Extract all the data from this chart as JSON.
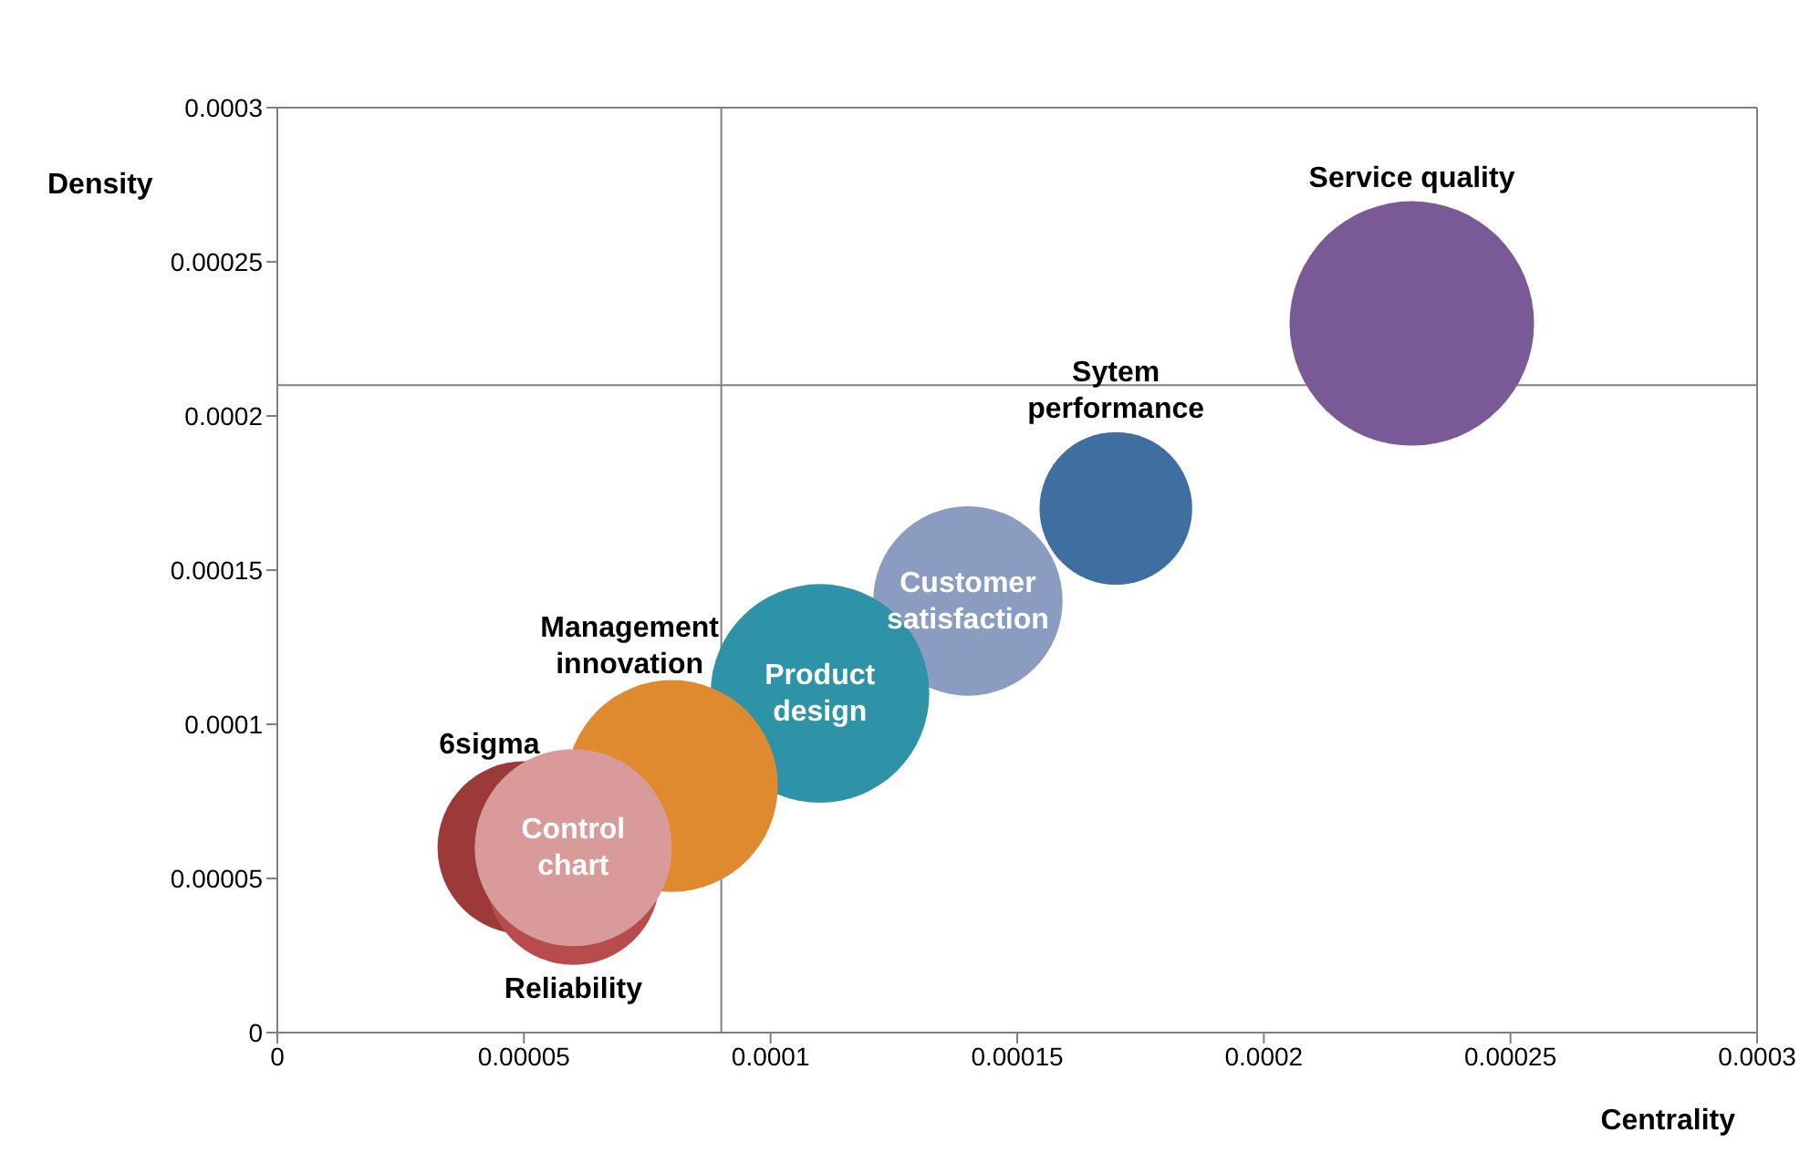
{
  "chart_data": {
    "type": "bubble",
    "xlabel": "Centrality",
    "ylabel": "Density",
    "xlim": [
      0,
      0.0003
    ],
    "ylim": [
      0,
      0.0003
    ],
    "xticks": [
      0,
      {
        "value": 5e-05,
        "label": "0.00005"
      },
      0.0001,
      0.00015,
      0.0002,
      0.00025,
      0.0003
    ],
    "yticks": [
      0,
      {
        "value": 5e-05,
        "label": "0.00005"
      },
      0.0001,
      0.00015,
      0.0002,
      0.00025,
      0.0003
    ],
    "grid": false,
    "ref_lines": [
      {
        "axis": "x",
        "value": 9e-05,
        "color": "#808080"
      },
      {
        "axis": "y",
        "value": 0.00021,
        "color": "#808080"
      }
    ],
    "series": [
      {
        "name": "Service quality",
        "color": "#7a5a96",
        "x": [
          0.00023
        ],
        "values": [
          0.00023
        ],
        "sizes": [
          1
        ]
      },
      {
        "name": "Sytem performance",
        "color": "#3f6fa0",
        "x": [
          0.00017
        ],
        "values": [
          0.00017
        ],
        "sizes": [
          0.39
        ]
      },
      {
        "name": "Customer satisfaction",
        "color": "#8a9cc0",
        "x": [
          0.00014
        ],
        "values": [
          0.00014
        ],
        "sizes": [
          0.6
        ]
      },
      {
        "name": "Product design",
        "color": "#2f93a8",
        "x": [
          0.00011
        ],
        "values": [
          0.00011
        ],
        "sizes": [
          0.8
        ]
      },
      {
        "name": "Management innovation",
        "color": "#e08a30",
        "x": [
          8e-05
        ],
        "values": [
          8e-05
        ],
        "sizes": [
          0.75
        ]
      },
      {
        "name": "6sigma",
        "color": "#9c3a3a",
        "x": [
          5e-05
        ],
        "values": [
          6e-05
        ],
        "sizes": [
          0.5
        ]
      },
      {
        "name": "Reliability",
        "color": "#b84c4c",
        "x": [
          6e-05
        ],
        "values": [
          5e-05
        ],
        "sizes": [
          0.5
        ]
      },
      {
        "name": "Control chart",
        "color": "#d99a9a",
        "x": [
          6e-05
        ],
        "values": [
          6e-05
        ],
        "sizes": [
          0.65
        ]
      }
    ]
  }
}
